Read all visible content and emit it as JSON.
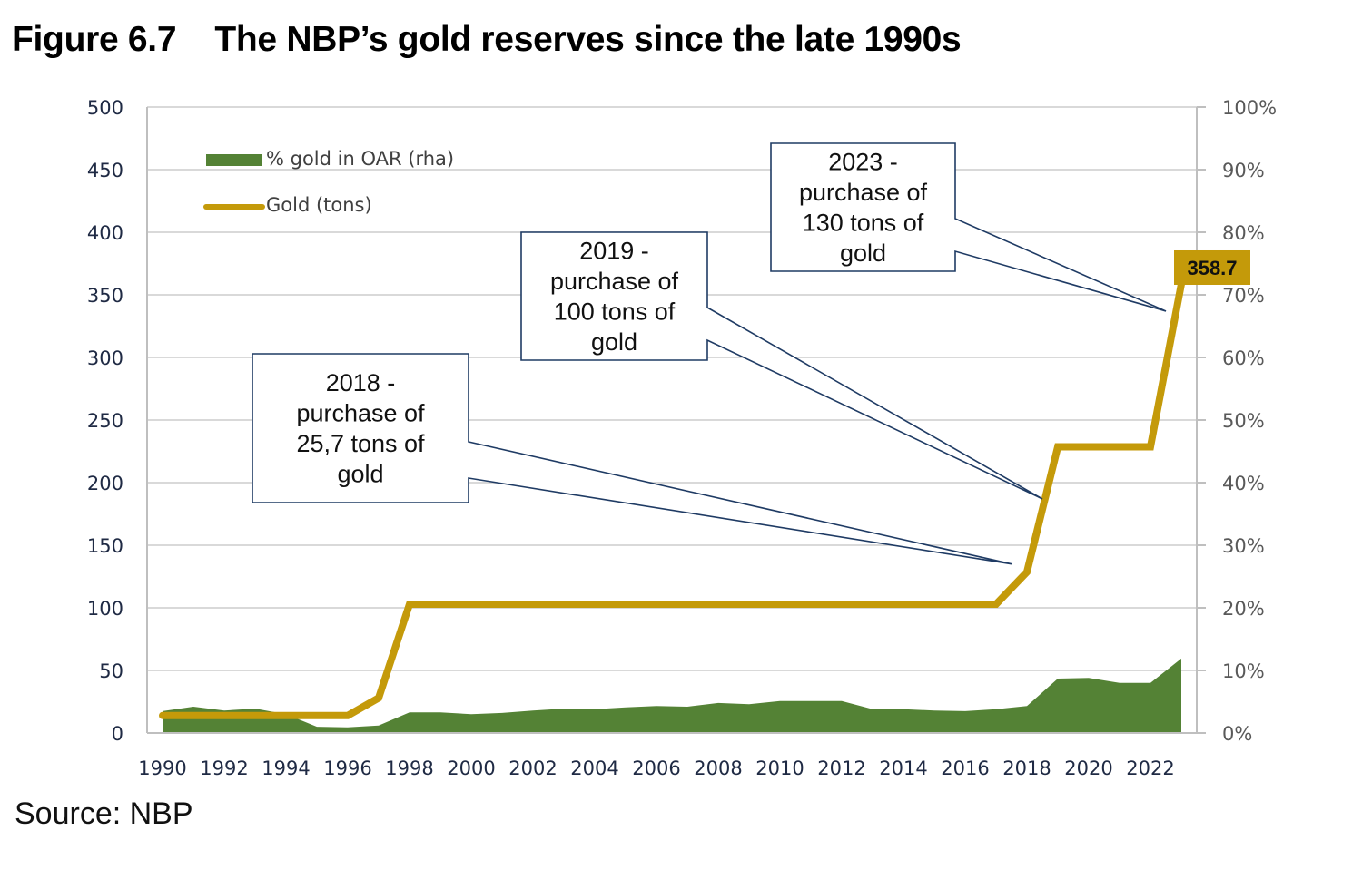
{
  "figure": {
    "title": "Figure 6.7    The NBP’s gold reserves since the late 1990s",
    "source": "Source: NBP"
  },
  "chart_data": {
    "type": "line+area",
    "title": "The NBP’s gold reserves since the late 1990s",
    "x": [
      1990,
      1991,
      1992,
      1993,
      1994,
      1995,
      1996,
      1997,
      1998,
      1999,
      2000,
      2001,
      2002,
      2003,
      2004,
      2005,
      2006,
      2007,
      2008,
      2009,
      2010,
      2011,
      2012,
      2013,
      2014,
      2015,
      2016,
      2017,
      2018,
      2019,
      2020,
      2021,
      2022,
      2023
    ],
    "x_tick_labels": [
      "1990",
      "1992",
      "1994",
      "1996",
      "1998",
      "2000",
      "2002",
      "2004",
      "2006",
      "2008",
      "2010",
      "2012",
      "2014",
      "2016",
      "2018",
      "2020",
      "2022"
    ],
    "y_left": {
      "label": "",
      "range": [
        0,
        500
      ],
      "ticks": [
        "0",
        "50",
        "100",
        "150",
        "200",
        "250",
        "300",
        "350",
        "400",
        "450",
        "500"
      ]
    },
    "y_right": {
      "label": "",
      "range": [
        0,
        100
      ],
      "ticks": [
        "0%",
        "10%",
        "20%",
        "30%",
        "40%",
        "50%",
        "60%",
        "70%",
        "80%",
        "90%",
        "100%"
      ]
    },
    "grid": true,
    "legend": {
      "placement": "top-left",
      "entries": [
        "% gold in OAR (rha)",
        "Gold (tons)"
      ]
    },
    "series": [
      {
        "name": "% gold in OAR (rha)",
        "type": "area",
        "axis": "right",
        "color": "#548235",
        "values": [
          3.5,
          4.2,
          3.6,
          3.9,
          3.0,
          1.0,
          0.9,
          1.2,
          3.3,
          3.3,
          3.0,
          3.2,
          3.6,
          3.9,
          3.8,
          4.1,
          4.3,
          4.2,
          4.8,
          4.6,
          5.1,
          5.1,
          5.1,
          3.8,
          3.8,
          3.6,
          3.5,
          3.8,
          4.3,
          8.7,
          8.8,
          8.0,
          8.0,
          11.9
        ]
      },
      {
        "name": "Gold (tons)",
        "type": "line",
        "axis": "left",
        "color": "#C49A0A",
        "values": [
          14,
          14,
          14,
          14,
          14,
          14,
          14,
          28,
          102.9,
          102.9,
          102.9,
          102.9,
          102.9,
          102.9,
          102.9,
          102.9,
          102.9,
          102.9,
          102.9,
          102.9,
          102.9,
          102.9,
          102.9,
          102.9,
          102.9,
          102.9,
          102.9,
          102.9,
          128.6,
          228.6,
          228.6,
          228.6,
          228.6,
          358.7
        ]
      }
    ],
    "data_labels": [
      {
        "series": "Gold (tons)",
        "x": 2023,
        "text": "358.7"
      }
    ],
    "annotations": [
      {
        "lines": [
          "2018 -",
          "purchase of",
          "25,7 tons of",
          "gold"
        ],
        "points_to_x": 2017.5,
        "points_to_y": 135
      },
      {
        "lines": [
          "2019 -",
          "purchase of",
          "100 tons of",
          "gold"
        ],
        "points_to_x": 2018.5,
        "points_to_y": 187
      },
      {
        "lines": [
          "2023 -",
          "purchase of",
          "130 tons of",
          "gold"
        ],
        "points_to_x": 2022.5,
        "points_to_y": 337
      }
    ]
  }
}
